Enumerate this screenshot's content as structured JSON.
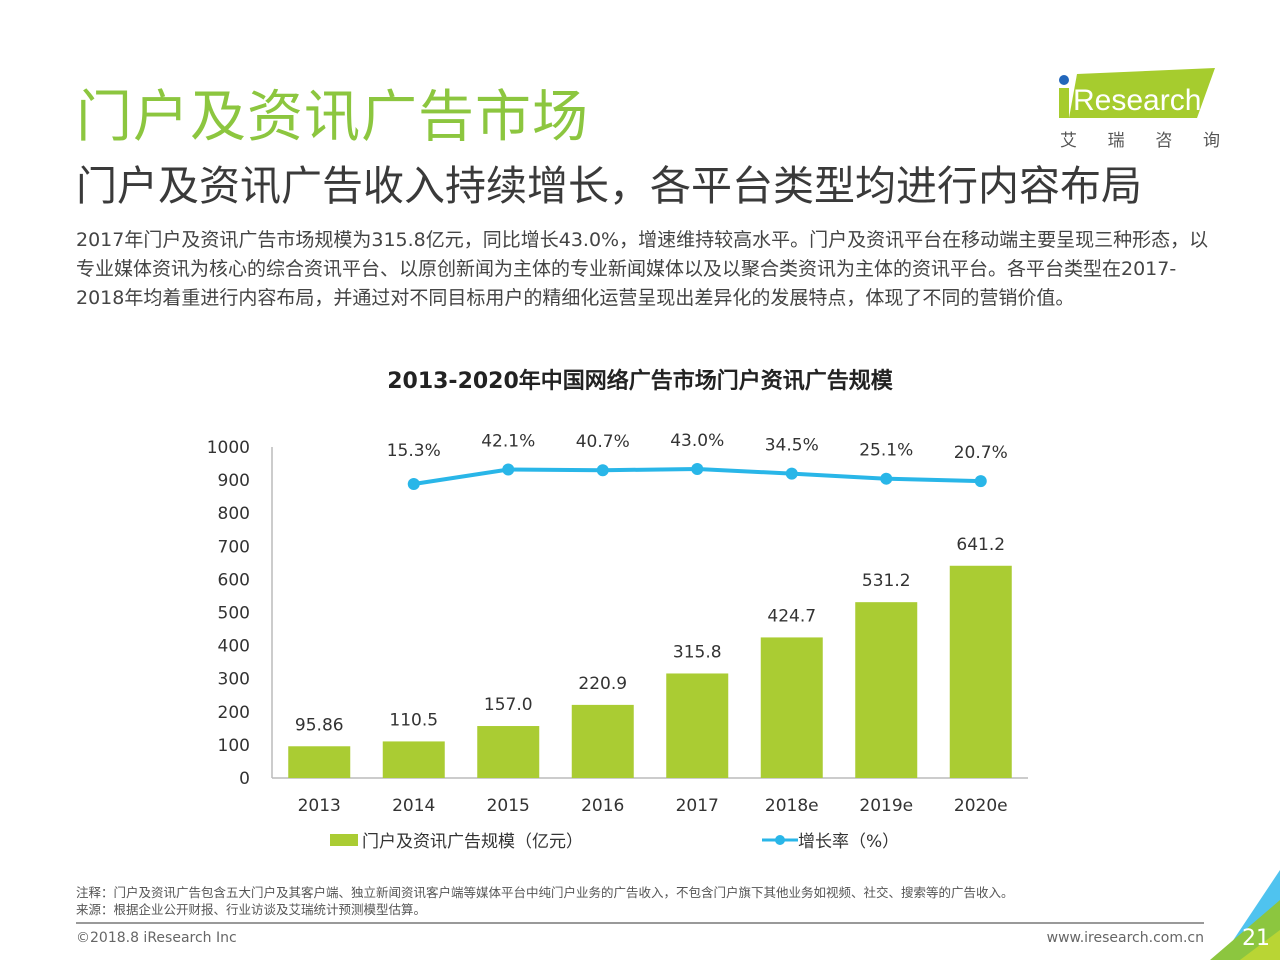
{
  "header": {
    "title": "门户及资讯广告市场",
    "subtitle": "门户及资讯广告收入持续增长，各平台类型均进行内容布局",
    "body": "2017年门户及资讯广告市场规模为315.8亿元，同比增长43.0%，增速维持较高水平。门户及资讯平台在移动端主要呈现三种形态，以专业媒体资讯为核心的综合资讯平台、以原创新闻为主体的专业新闻媒体以及以聚合类资讯为主体的资讯平台。各平台类型在2017-2018年均着重进行内容布局，并通过对不同目标用户的精细化运营呈现出差异化的发展特点，体现了不同的营销价值。"
  },
  "logo": {
    "text": "iResearch",
    "cn": [
      "艾",
      "瑞",
      "咨",
      "询"
    ]
  },
  "colors": {
    "accent_green": "#8cc63f",
    "bar": "#aacc33",
    "line": "#29b6e8"
  },
  "chart_data": {
    "type": "bar",
    "title": "2013-2020年中国网络广告市场门户资讯广告规模",
    "categories": [
      "2013",
      "2014",
      "2015",
      "2016",
      "2017",
      "2018e",
      "2019e",
      "2020e"
    ],
    "series": [
      {
        "name": "门户及资讯广告规模（亿元）",
        "type": "bar",
        "values": [
          95.86,
          110.5,
          157.0,
          220.9,
          315.8,
          424.7,
          531.2,
          641.2
        ],
        "labels": [
          "95.86",
          "110.5",
          "157.0",
          "220.9",
          "315.8",
          "424.7",
          "531.2",
          "641.2"
        ]
      },
      {
        "name": "增长率（%）",
        "type": "line",
        "values": [
          null,
          15.3,
          42.1,
          40.7,
          43.0,
          34.5,
          25.1,
          20.7
        ],
        "labels": [
          "",
          "15.3%",
          "42.1%",
          "40.7%",
          "43.0%",
          "34.5%",
          "25.1%",
          "20.7%"
        ]
      }
    ],
    "yticks": [
      "0",
      "100",
      "200",
      "300",
      "400",
      "500",
      "600",
      "700",
      "800",
      "900",
      "1000"
    ],
    "ylim": [
      0,
      1000
    ],
    "xlabel": "",
    "ylabel": "",
    "legend_position": "bottom"
  },
  "footer": {
    "note": "注释：门户及资讯广告包含五大门户及其客户端、独立新闻资讯客户端等媒体平台中纯门户业务的广告收入，不包含门户旗下其他业务如视频、社交、搜索等的广告收入。",
    "source": "来源：根据企业公开财报、行业访谈及艾瑞统计预测模型估算。",
    "copyright": "©2018.8 iResearch Inc",
    "site": "www.iresearch.com.cn",
    "page": "21"
  }
}
